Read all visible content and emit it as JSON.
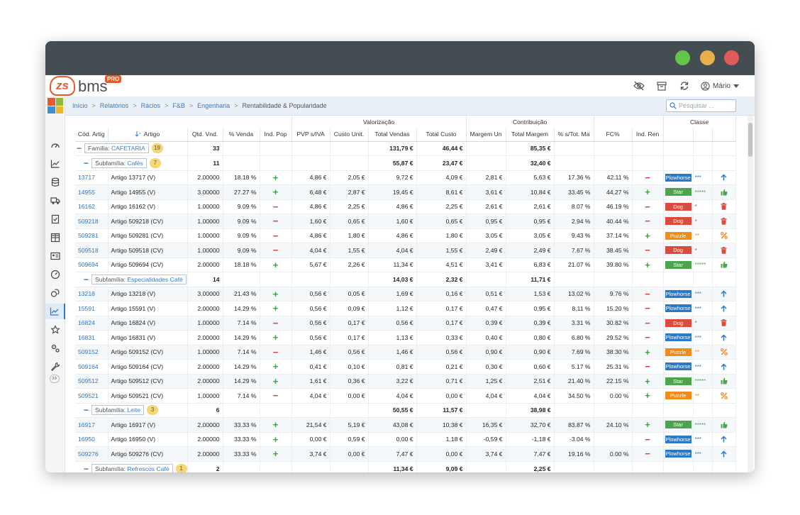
{
  "header": {
    "logo_text": "bms",
    "logo_mark": "zs",
    "logo_badge": "PRO",
    "user_name": "Mário",
    "icons": [
      "eye-off-icon",
      "archive-icon",
      "refresh-icon",
      "user-icon"
    ]
  },
  "breadcrumb": {
    "items": [
      "Início",
      "Relatórios",
      "Rácios",
      "F&B",
      "Engenharia"
    ],
    "current": "Rentabilidade & Popularidade"
  },
  "search": {
    "placeholder": "Pesquisar ..."
  },
  "sidebar": {
    "icons": [
      "dashboard-icon",
      "chart-icon",
      "database-icon",
      "truck-icon",
      "checklist-icon",
      "grid-icon",
      "id-card-icon",
      "speedometer-icon",
      "coins-icon",
      "trend-icon",
      "star-icon",
      "settings-icon",
      "wrench-icon"
    ],
    "active_index": 9
  },
  "table": {
    "group_headers": {
      "valorizacao": "Valorização",
      "contribuicao": "Contribuição",
      "classe": "Classe"
    },
    "columns": [
      "Cód. Artig",
      "Artigo",
      "Qtd. Vnd.",
      "% Venda",
      "Ind. Pop",
      "PVP s/IVA",
      "Custo Unit.",
      "Total Vendas",
      "Total Custo",
      "Margem Un",
      "Total Margem",
      "% s/Tot. Ma",
      "FC%",
      "Ind. Ren"
    ],
    "familia": {
      "prefix": "Família:",
      "name": "CAFETARIA",
      "count": "19",
      "qtd": "33",
      "total_vendas": "131,79 €",
      "total_custo": "46,44 €",
      "total_margem": "85,35 €"
    },
    "groups": [
      {
        "prefix": "Subfamília:",
        "name": "Cafés",
        "count": "7",
        "qtd": "11",
        "total_vendas": "55,87 €",
        "total_custo": "23,47 €",
        "total_margem": "32,40 €",
        "rows": [
          {
            "code": "13717",
            "name": "Artigo 13717 (V)",
            "qtd": "2.00000",
            "venda": "18.18 %",
            "pop": "+",
            "pvp": "4,86 €",
            "custo": "2,05 €",
            "tv": "9,72 €",
            "tc": "4,09 €",
            "mu": "2,81 €",
            "tm": "5,63 €",
            "stm": "17.36 %",
            "fc": "42.11 %",
            "ren": "-",
            "class": "Plowhorse",
            "stars": "***",
            "action": "arrow-up-icon"
          },
          {
            "code": "14955",
            "name": "Artigo 14955 (V)",
            "qtd": "3.00000",
            "venda": "27.27 %",
            "pop": "+",
            "pvp": "6,48 €",
            "custo": "2,87 €",
            "tv": "19,45 €",
            "tc": "8,61 €",
            "mu": "3,61 €",
            "tm": "10,84 €",
            "stm": "33.45 %",
            "fc": "44.27 %",
            "ren": "+",
            "class": "Star",
            "stars": "*****",
            "action": "thumbs-up-icon"
          },
          {
            "code": "16162",
            "name": "Artigo 16162 (V)",
            "qtd": "1.00000",
            "venda": "9.09 %",
            "pop": "-",
            "pvp": "4,86 €",
            "custo": "2,25 €",
            "tv": "4,86 €",
            "tc": "2,25 €",
            "mu": "2,61 €",
            "tm": "2,61 €",
            "stm": "8.07 %",
            "fc": "46.19 %",
            "ren": "-",
            "class": "Dog",
            "stars": "*",
            "action": "trash-icon"
          },
          {
            "code": "509218",
            "name": "Artigo 509218 (CV)",
            "qtd": "1.00000",
            "venda": "9.09 %",
            "pop": "-",
            "pvp": "1,60 €",
            "custo": "0,65 €",
            "tv": "1,60 €",
            "tc": "0,65 €",
            "mu": "0,95 €",
            "tm": "0,95 €",
            "stm": "2.94 %",
            "fc": "40.44 %",
            "ren": "-",
            "class": "Dog",
            "stars": "*",
            "action": "trash-icon"
          },
          {
            "code": "509281",
            "name": "Artigo 509281 (CV)",
            "qtd": "1.00000",
            "venda": "9.09 %",
            "pop": "-",
            "pvp": "4,86 €",
            "custo": "1,80 €",
            "tv": "4,86 €",
            "tc": "1,80 €",
            "mu": "3,05 €",
            "tm": "3,05 €",
            "stm": "9.43 %",
            "fc": "37.14 %",
            "ren": "+",
            "class": "Puzzle",
            "stars": "**",
            "action": "percent-icon"
          },
          {
            "code": "509518",
            "name": "Artigo 509518 (CV)",
            "qtd": "1.00000",
            "venda": "9.09 %",
            "pop": "-",
            "pvp": "4,04 €",
            "custo": "1,55 €",
            "tv": "4,04 €",
            "tc": "1,55 €",
            "mu": "2,49 €",
            "tm": "2,49 €",
            "stm": "7.67 %",
            "fc": "38.45 %",
            "ren": "-",
            "class": "Dog",
            "stars": "*",
            "action": "trash-icon"
          },
          {
            "code": "509694",
            "name": "Artigo 509694 (CV)",
            "qtd": "2.00000",
            "venda": "18.18 %",
            "pop": "+",
            "pvp": "5,67 €",
            "custo": "2,26 €",
            "tv": "11,34 €",
            "tc": "4,51 €",
            "mu": "3,41 €",
            "tm": "6,83 €",
            "stm": "21.07 %",
            "fc": "39.80 %",
            "ren": "+",
            "class": "Star",
            "stars": "*****",
            "action": "thumbs-up-icon"
          }
        ]
      },
      {
        "prefix": "Subfamília:",
        "name": "Especialidades Café",
        "count": "8",
        "qtd": "14",
        "total_vendas": "14,03 €",
        "total_custo": "2,32 €",
        "total_margem": "11,71 €",
        "rows": [
          {
            "code": "13218",
            "name": "Artigo 13218 (V)",
            "qtd": "3.00000",
            "venda": "21.43 %",
            "pop": "+",
            "pvp": "0,56 €",
            "custo": "0,05 €",
            "tv": "1,69 €",
            "tc": "0,16 €",
            "mu": "0,51 €",
            "tm": "1,53 €",
            "stm": "13.02 %",
            "fc": "9.76 %",
            "ren": "-",
            "class": "Plowhorse",
            "stars": "***",
            "action": "arrow-up-icon"
          },
          {
            "code": "15591",
            "name": "Artigo 15591 (V)",
            "qtd": "2.00000",
            "venda": "14.29 %",
            "pop": "+",
            "pvp": "0,56 €",
            "custo": "0,09 €",
            "tv": "1,12 €",
            "tc": "0,17 €",
            "mu": "0,47 €",
            "tm": "0,95 €",
            "stm": "8.11 %",
            "fc": "15.20 %",
            "ren": "-",
            "class": "Plowhorse",
            "stars": "***",
            "action": "arrow-up-icon"
          },
          {
            "code": "16824",
            "name": "Artigo 16824 (V)",
            "qtd": "1.00000",
            "venda": "7.14 %",
            "pop": "-",
            "pvp": "0,56 €",
            "custo": "0,17 €",
            "tv": "0,56 €",
            "tc": "0,17 €",
            "mu": "0,39 €",
            "tm": "0,39 €",
            "stm": "3.31 %",
            "fc": "30.82 %",
            "ren": "-",
            "class": "Dog",
            "stars": "*",
            "action": "trash-icon"
          },
          {
            "code": "16831",
            "name": "Artigo 16831 (V)",
            "qtd": "2.00000",
            "venda": "14.29 %",
            "pop": "+",
            "pvp": "0,56 €",
            "custo": "0,17 €",
            "tv": "1,13 €",
            "tc": "0,33 €",
            "mu": "0,40 €",
            "tm": "0,80 €",
            "stm": "6.80 %",
            "fc": "29.52 %",
            "ren": "-",
            "class": "Plowhorse",
            "stars": "***",
            "action": "arrow-up-icon"
          },
          {
            "code": "509152",
            "name": "Artigo 509152 (CV)",
            "qtd": "1.00000",
            "venda": "7.14 %",
            "pop": "-",
            "pvp": "1,46 €",
            "custo": "0,56 €",
            "tv": "1,46 €",
            "tc": "0,56 €",
            "mu": "0,90 €",
            "tm": "0,90 €",
            "stm": "7.69 %",
            "fc": "38.30 %",
            "ren": "+",
            "class": "Puzzle",
            "stars": "**",
            "action": "percent-icon"
          },
          {
            "code": "509164",
            "name": "Artigo 509164 (CV)",
            "qtd": "2.00000",
            "venda": "14.29 %",
            "pop": "+",
            "pvp": "0,41 €",
            "custo": "0,10 €",
            "tv": "0,81 €",
            "tc": "0,21 €",
            "mu": "0,30 €",
            "tm": "0,60 €",
            "stm": "5.17 %",
            "fc": "25.31 %",
            "ren": "-",
            "class": "Plowhorse",
            "stars": "***",
            "action": "arrow-up-icon"
          },
          {
            "code": "509512",
            "name": "Artigo 509512 (CV)",
            "qtd": "2.00000",
            "venda": "14.29 %",
            "pop": "+",
            "pvp": "1,61 €",
            "custo": "0,36 €",
            "tv": "3,22 €",
            "tc": "0,71 €",
            "mu": "1,25 €",
            "tm": "2,51 €",
            "stm": "21.40 %",
            "fc": "22.15 %",
            "ren": "+",
            "class": "Star",
            "stars": "*****",
            "action": "thumbs-up-icon"
          },
          {
            "code": "509521",
            "name": "Artigo 509521 (CV)",
            "qtd": "1.00000",
            "venda": "7.14 %",
            "pop": "-",
            "pvp": "4,04 €",
            "custo": "0,00 €",
            "tv": "4,04 €",
            "tc": "0,00 €",
            "mu": "4,04 €",
            "tm": "4,04 €",
            "stm": "34.50 %",
            "fc": "0.00 %",
            "ren": "+",
            "class": "Puzzle",
            "stars": "**",
            "action": "percent-icon"
          }
        ]
      },
      {
        "prefix": "Subfamília:",
        "name": "Leite",
        "count": "3",
        "qtd": "6",
        "total_vendas": "50,55 €",
        "total_custo": "11,57 €",
        "total_margem": "38,98 €",
        "rows": [
          {
            "code": "16917",
            "name": "Artigo 16917 (V)",
            "qtd": "2.00000",
            "venda": "33.33 %",
            "pop": "+",
            "pvp": "21,54 €",
            "custo": "5,19 €",
            "tv": "43,08 €",
            "tc": "10,38 €",
            "mu": "16,35 €",
            "tm": "32,70 €",
            "stm": "83.87 %",
            "fc": "24.10 %",
            "ren": "+",
            "class": "Star",
            "stars": "*****",
            "action": "thumbs-up-icon"
          },
          {
            "code": "16950",
            "name": "Artigo 16950 (V)",
            "qtd": "2.00000",
            "venda": "33.33 %",
            "pop": "+",
            "pvp": "0,00 €",
            "custo": "0,59 €",
            "tv": "0,00 €",
            "tc": "1,18 €",
            "mu": "-0,59 €",
            "tm": "-1,18 €",
            "stm": "-3.04 %",
            "fc": "",
            "ren": "-",
            "class": "Plowhorse",
            "stars": "***",
            "action": "arrow-up-icon"
          },
          {
            "code": "509276",
            "name": "Artigo 509276 (CV)",
            "qtd": "2.00000",
            "venda": "33.33 %",
            "pop": "+",
            "pvp": "3,74 €",
            "custo": "0,00 €",
            "tv": "7,47 €",
            "tc": "0,00 €",
            "mu": "3,74 €",
            "tm": "7,47 €",
            "stm": "19.16 %",
            "fc": "0.00 %",
            "ren": "-",
            "class": "Plowhorse",
            "stars": "***",
            "action": "arrow-up-icon"
          }
        ]
      },
      {
        "prefix": "Subfamília:",
        "name": "Refrescos Café",
        "count": "1",
        "qtd": "2",
        "total_vendas": "11,34 €",
        "total_custo": "9,09 €",
        "total_margem": "2,25 €",
        "rows": []
      }
    ]
  }
}
